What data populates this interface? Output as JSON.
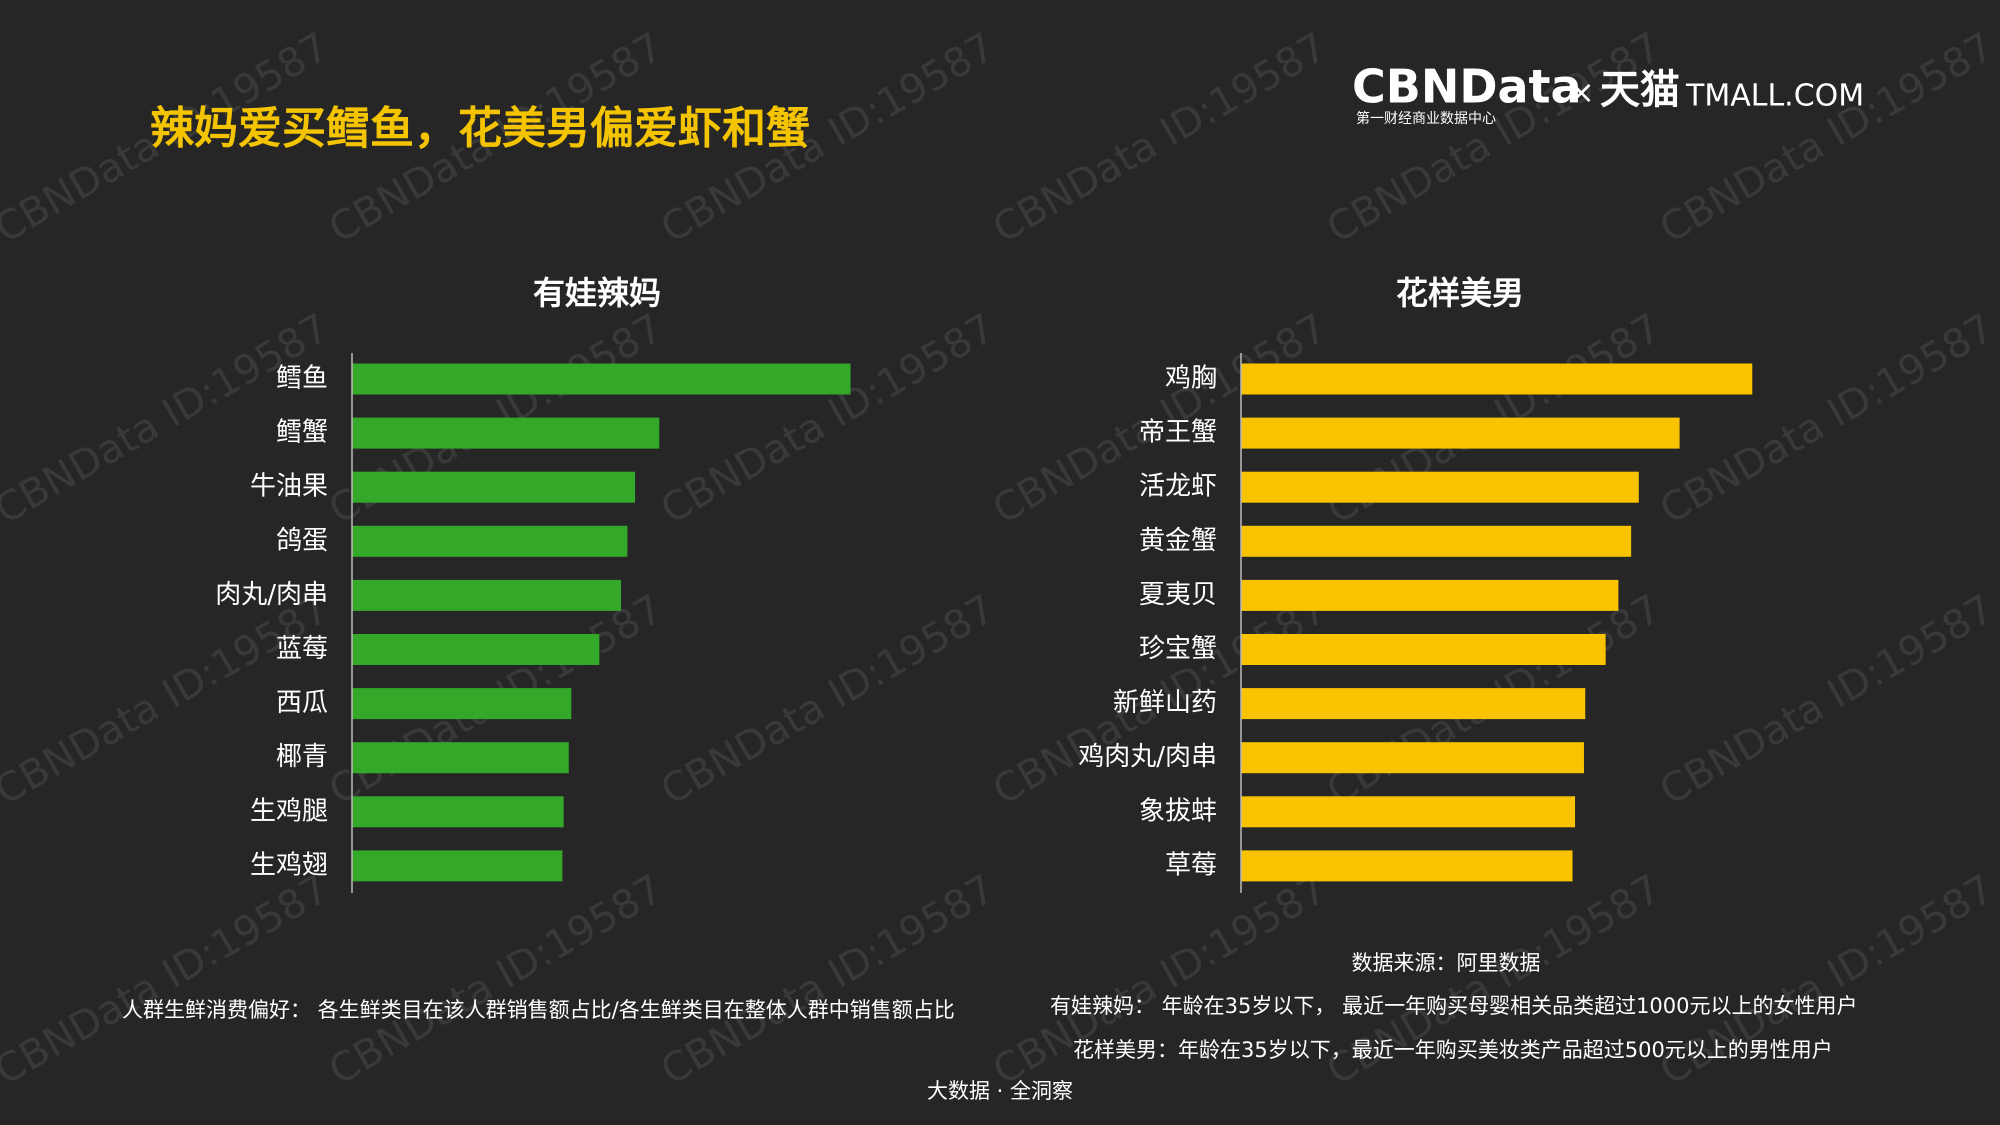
{
  "title": "辣妈爱买鳕鱼，花美男偏爱虾和蟹",
  "logo": {
    "brand": "CBNData",
    "subtitle": "第一财经商业数据中心",
    "cross": "×",
    "tmall_cn": "天猫",
    "tmall_en": "TMALL.COM"
  },
  "watermark": "CBNData ID:19587",
  "chart_data": [
    {
      "type": "bar",
      "orientation": "horizontal",
      "title": "有娃辣妈",
      "categories": [
        "鳕鱼",
        "鳕蟹",
        "牛油果",
        "鸽蛋",
        "肉丸/肉串",
        "蓝莓",
        "西瓜",
        "椰青",
        "生鸡腿",
        "生鸡翅"
      ],
      "values": [
        391,
        241,
        222,
        216,
        211,
        194,
        172,
        170,
        166,
        165
      ],
      "color": "#34a828",
      "xlim": [
        0,
        400
      ]
    },
    {
      "type": "bar",
      "orientation": "horizontal",
      "title": "花样美男",
      "categories": [
        "鸡胸",
        "帝王蟹",
        "活龙虾",
        "黄金蟹",
        "夏夷贝",
        "珍宝蟹",
        "新鲜山药",
        "鸡肉丸/肉串",
        "象拔蚌",
        "草莓"
      ],
      "values": [
        401,
        344,
        312,
        306,
        296,
        286,
        270,
        269,
        262,
        260
      ],
      "color": "#f9c300",
      "xlim": [
        0,
        400
      ]
    }
  ],
  "notes": {
    "definition": "人群生鲜消费偏好： 各生鲜类目在该人群销售额占比/各生鲜类目在整体人群中销售额占比",
    "source": "数据来源：阿里数据",
    "moms": "有娃辣妈： 年龄在35岁以下， 最近一年购买母婴相关品类超过1000元以上的女性用户",
    "men": "花样美男：年龄在35岁以下，最近一年购买美妆类产品超过500元以上的男性用户"
  },
  "footer": "大数据 · 全洞察"
}
